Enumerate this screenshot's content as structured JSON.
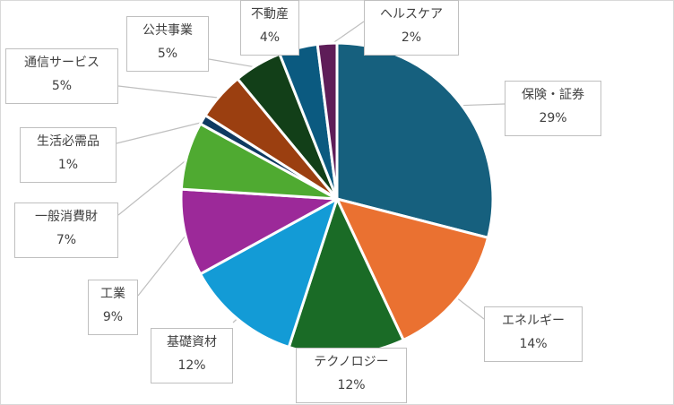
{
  "chart_data": {
    "type": "pie",
    "slices": [
      {
        "label": "保険・証券",
        "value": 29,
        "display": "29%",
        "color": "#16607e"
      },
      {
        "label": "エネルギー",
        "value": 14,
        "display": "14%",
        "color": "#ea7131"
      },
      {
        "label": "テクノロジー",
        "value": 12,
        "display": "12%",
        "color": "#1a6b26"
      },
      {
        "label": "基礎資材",
        "value": 12,
        "display": "12%",
        "color": "#139bd6"
      },
      {
        "label": "工業",
        "value": 9,
        "display": "9%",
        "color": "#9c2999"
      },
      {
        "label": "一般消費財",
        "value": 7,
        "display": "7%",
        "color": "#4faa31"
      },
      {
        "label": "生活必需品",
        "value": 1,
        "display": "1%",
        "color": "#0f3a61"
      },
      {
        "label": "通信サービス",
        "value": 5,
        "display": "5%",
        "color": "#9b3f10"
      },
      {
        "label": "公共事業",
        "value": 5,
        "display": "5%",
        "color": "#123f18"
      },
      {
        "label": "不動産",
        "value": 4,
        "display": "4%",
        "color": "#0b5a80"
      },
      {
        "label": "ヘルスケア",
        "value": 2,
        "display": "2%",
        "color": "#5e1d58"
      }
    ],
    "start_angle": "12 o'clock",
    "direction": "clockwise",
    "data_labels": "callouts with leader lines",
    "legend": "none"
  }
}
